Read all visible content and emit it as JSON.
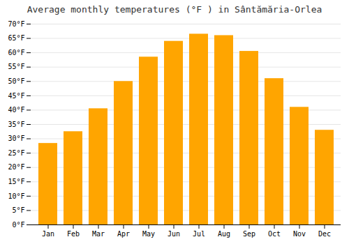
{
  "chart_data": {
    "type": "bar",
    "title": "Average monthly temperatures (°F ) in Sântămăria-Orlea",
    "categories": [
      "Jan",
      "Feb",
      "Mar",
      "Apr",
      "May",
      "Jun",
      "Jul",
      "Aug",
      "Sep",
      "Oct",
      "Nov",
      "Dec"
    ],
    "values": [
      28.4,
      32.5,
      40.5,
      50.0,
      58.5,
      64.0,
      66.5,
      66.0,
      60.5,
      51.0,
      41.0,
      33.0
    ],
    "color": "#FFA500",
    "ylim": [
      0,
      70
    ],
    "yticks": [
      {
        "value": 0,
        "label": "0°F"
      },
      {
        "value": 5,
        "label": "5°F"
      },
      {
        "value": 10,
        "label": "10°F"
      },
      {
        "value": 15,
        "label": "15°F"
      },
      {
        "value": 20,
        "label": "20°F"
      },
      {
        "value": 25,
        "label": "25°F"
      },
      {
        "value": 30,
        "label": "30°F"
      },
      {
        "value": 35,
        "label": "35°F"
      },
      {
        "value": 40,
        "label": "40°F"
      },
      {
        "value": 45,
        "label": "45°F"
      },
      {
        "value": 50,
        "label": "50°F"
      },
      {
        "value": 55,
        "label": "55°F"
      },
      {
        "value": 60,
        "label": "60°F"
      },
      {
        "value": 65,
        "label": "65°F"
      },
      {
        "value": 70,
        "label": "70°F"
      }
    ],
    "grid": true
  }
}
